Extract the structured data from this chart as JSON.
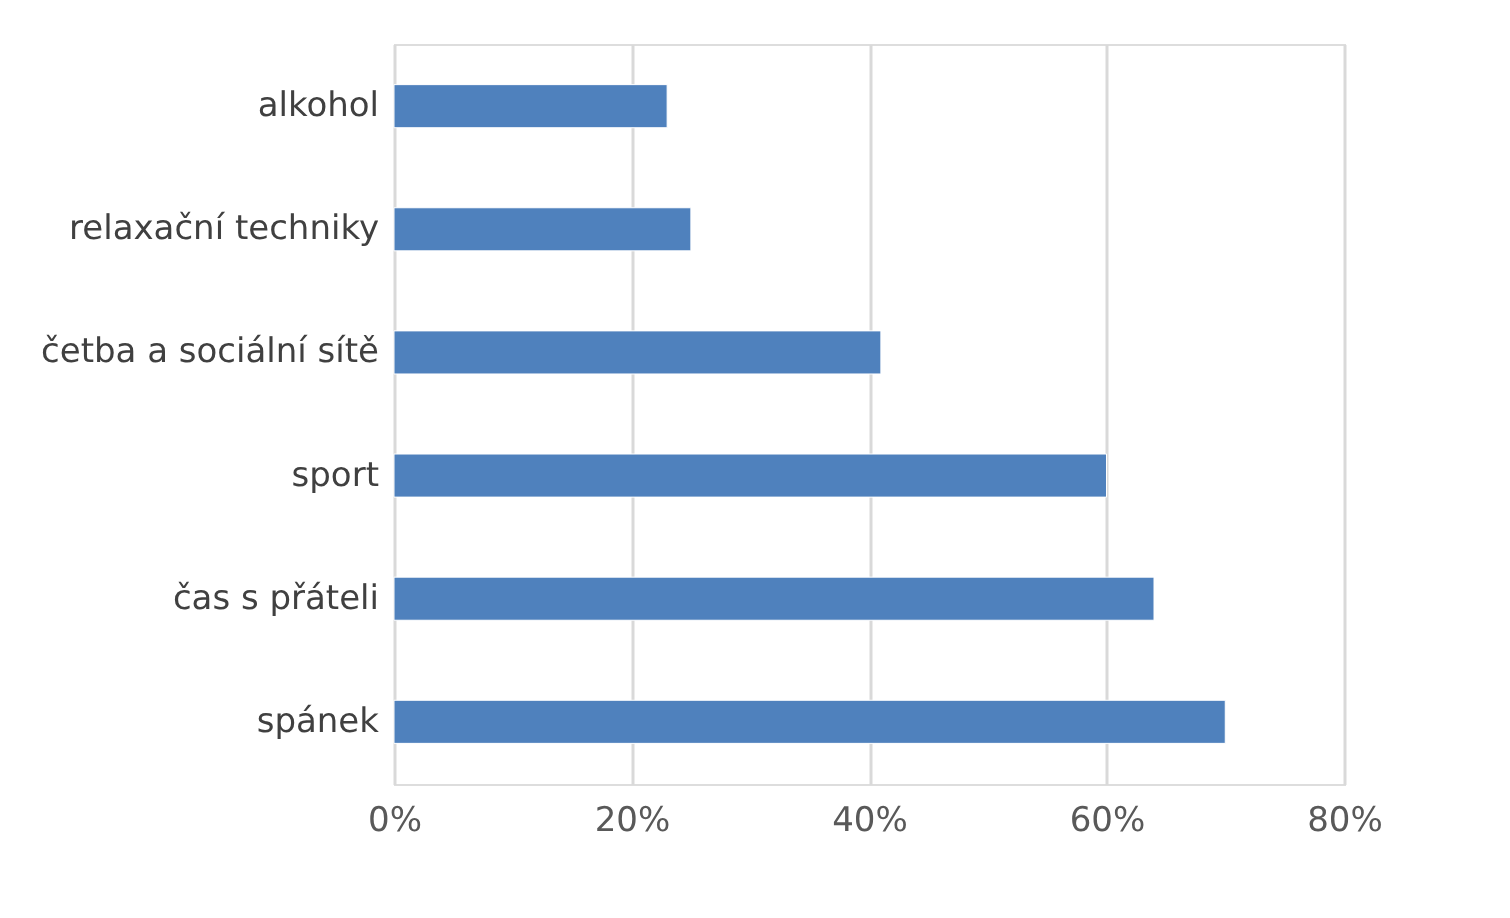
{
  "chart_data": {
    "type": "bar",
    "orientation": "horizontal",
    "categories": [
      "alkohol",
      "relaxační techniky",
      "četba a sociální sítě",
      "sport",
      "čas s přáteli",
      "spánek"
    ],
    "values": [
      23,
      25,
      41,
      60,
      64,
      70
    ],
    "color": "#4f81bd",
    "xlim": [
      0,
      80
    ],
    "xticks": [
      {
        "value": 0,
        "label": "0%"
      },
      {
        "value": 20,
        "label": "20%"
      },
      {
        "value": 40,
        "label": "40%"
      },
      {
        "value": 60,
        "label": "60%"
      },
      {
        "value": 80,
        "label": "80%"
      }
    ],
    "grid": "x"
  }
}
